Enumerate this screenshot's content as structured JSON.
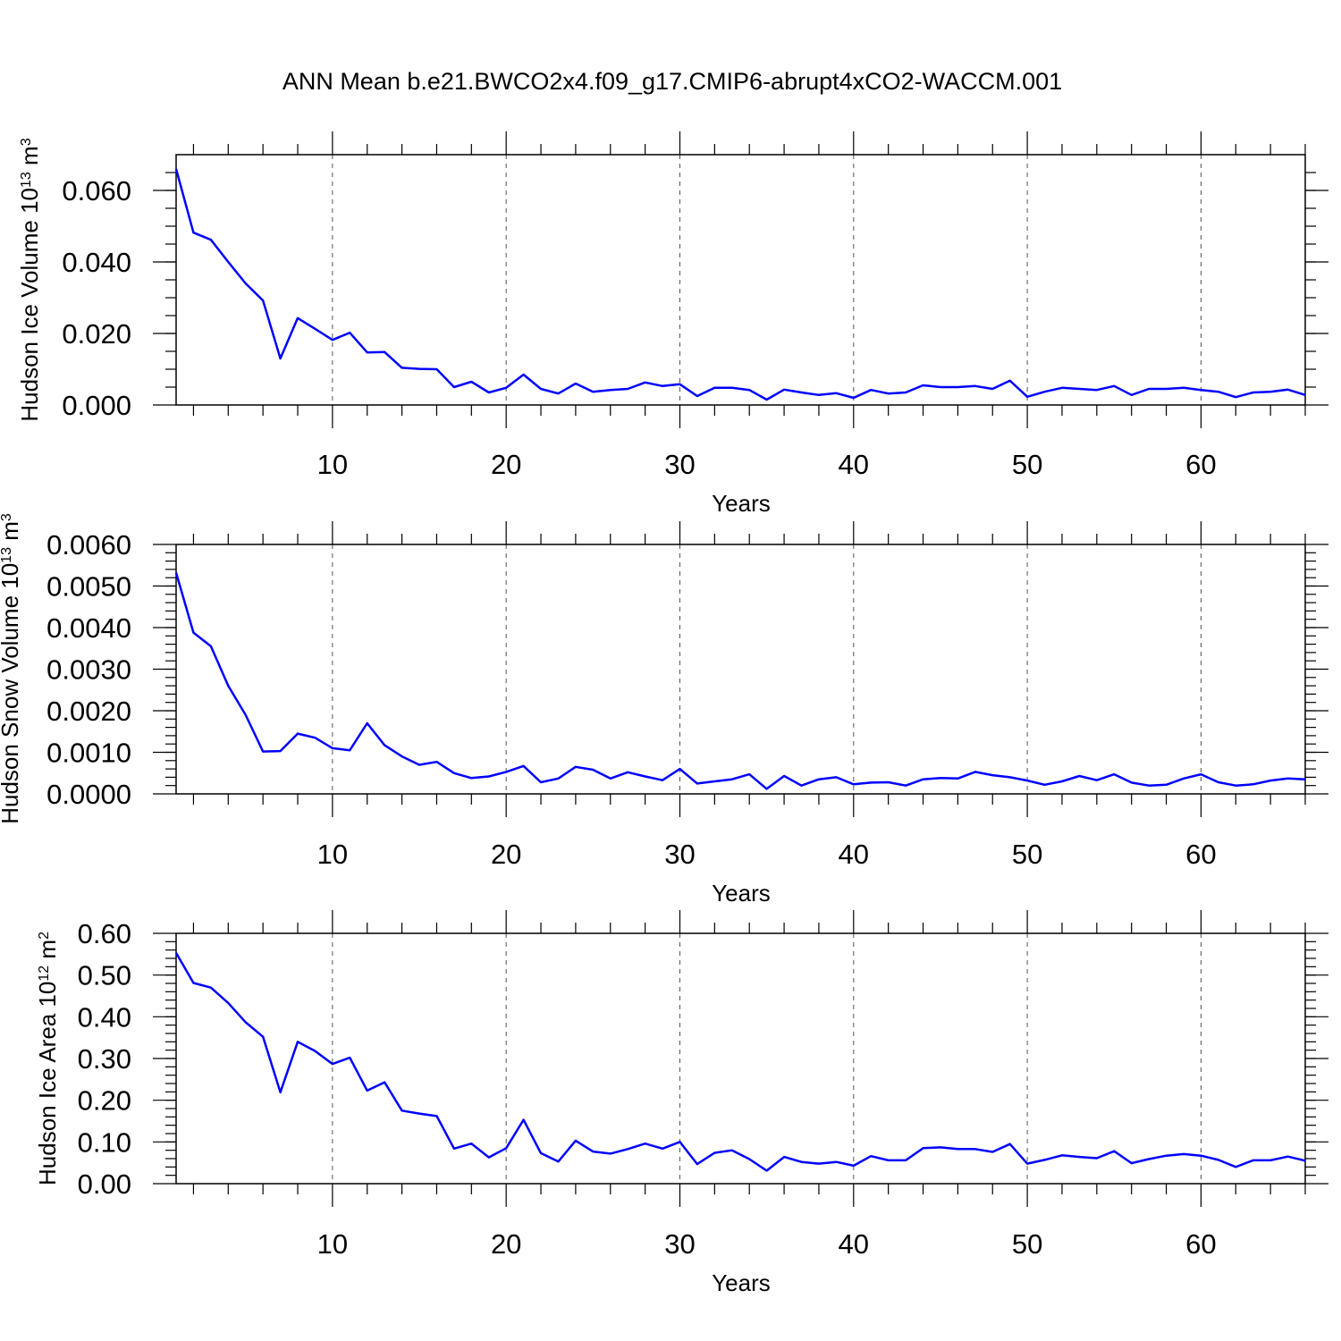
{
  "title": "ANN Mean b.e21.BWCO2x4.f09_g17.CMIP6-abrupt4xCO2-WACCM.001",
  "line_color": "#0000ff",
  "chart_data": [
    {
      "type": "line",
      "ylabel": "Hudson Ice Volume 10",
      "ylabel_exp": "13",
      "ylabel_unit": "m",
      "ylabel_unit_exp": "3",
      "xlabel": "Years",
      "xlim": [
        1,
        66
      ],
      "ylim": [
        0.0,
        0.07
      ],
      "x_ticks": [
        10,
        20,
        30,
        40,
        50,
        60
      ],
      "x_tick_labels": [
        "10",
        "20",
        "30",
        "40",
        "50",
        "60"
      ],
      "y_ticks": [
        0.0,
        0.02,
        0.04,
        0.06
      ],
      "y_tick_labels": [
        "0.000",
        "0.020",
        "0.040",
        "0.060"
      ],
      "y_minor_step": 0.005,
      "grid": "vertical dashed at major x ticks",
      "series": [
        {
          "name": "Hudson Ice Volume",
          "values": [
            0.066,
            0.0482,
            0.0462,
            0.04,
            0.034,
            0.0292,
            0.013,
            0.0243,
            0.0213,
            0.0182,
            0.0202,
            0.0147,
            0.0148,
            0.0104,
            0.0101,
            0.01,
            0.005,
            0.0065,
            0.0035,
            0.0048,
            0.0085,
            0.0045,
            0.0032,
            0.006,
            0.0037,
            0.0042,
            0.0045,
            0.0063,
            0.0053,
            0.0058,
            0.0025,
            0.0048,
            0.0048,
            0.0042,
            0.0015,
            0.0043,
            0.0035,
            0.0028,
            0.0033,
            0.002,
            0.0042,
            0.0032,
            0.0035,
            0.0055,
            0.005,
            0.005,
            0.0053,
            0.0045,
            0.0068,
            0.0023,
            0.0037,
            0.0048,
            0.0045,
            0.0042,
            0.0053,
            0.0028,
            0.0045,
            0.0045,
            0.0048,
            0.0042,
            0.0037,
            0.0022,
            0.0035,
            0.0037,
            0.0043,
            0.0028
          ]
        }
      ]
    },
    {
      "type": "line",
      "ylabel": "Hudson Snow Volume 10",
      "ylabel_exp": "13",
      "ylabel_unit": "m",
      "ylabel_unit_exp": "3",
      "xlabel": "Years",
      "xlim": [
        1,
        66
      ],
      "ylim": [
        0.0,
        0.006
      ],
      "x_ticks": [
        10,
        20,
        30,
        40,
        50,
        60
      ],
      "x_tick_labels": [
        "10",
        "20",
        "30",
        "40",
        "50",
        "60"
      ],
      "y_ticks": [
        0.0,
        0.001,
        0.002,
        0.003,
        0.004,
        0.005,
        0.006
      ],
      "y_tick_labels": [
        "0.0000",
        "0.0010",
        "0.0020",
        "0.0030",
        "0.0040",
        "0.0050",
        "0.0060"
      ],
      "y_minor_step": 0.0002,
      "grid": "vertical dashed at major x ticks",
      "series": [
        {
          "name": "Hudson Snow Volume",
          "values": [
            0.00532,
            0.00388,
            0.00355,
            0.0026,
            0.0019,
            0.00102,
            0.00103,
            0.00145,
            0.00135,
            0.0011,
            0.00105,
            0.0017,
            0.00117,
            0.0009,
            0.0007,
            0.00077,
            0.0005,
            0.00038,
            0.00042,
            0.00053,
            0.00067,
            0.00028,
            0.00037,
            0.00065,
            0.00058,
            0.00037,
            0.00052,
            0.00042,
            0.00033,
            0.0006,
            0.00025,
            0.0003,
            0.00035,
            0.00047,
            0.00012,
            0.00043,
            0.0002,
            0.00035,
            0.0004,
            0.00023,
            0.00027,
            0.00028,
            0.0002,
            0.00035,
            0.00038,
            0.00037,
            0.00053,
            0.00045,
            0.0004,
            0.00032,
            0.00022,
            0.0003,
            0.00043,
            0.00033,
            0.00047,
            0.00027,
            0.0002,
            0.00022,
            0.00037,
            0.00047,
            0.00028,
            0.0002,
            0.00023,
            0.00032,
            0.00037,
            0.00035
          ]
        }
      ]
    },
    {
      "type": "line",
      "ylabel": "Hudson Ice Area 10",
      "ylabel_exp": "12",
      "ylabel_unit": "m",
      "ylabel_unit_exp": "2",
      "xlabel": "Years",
      "xlim": [
        1,
        66
      ],
      "ylim": [
        0.0,
        0.6
      ],
      "x_ticks": [
        10,
        20,
        30,
        40,
        50,
        60
      ],
      "x_tick_labels": [
        "10",
        "20",
        "30",
        "40",
        "50",
        "60"
      ],
      "y_ticks": [
        0.0,
        0.1,
        0.2,
        0.3,
        0.4,
        0.5,
        0.6
      ],
      "y_tick_labels": [
        "0.00",
        "0.10",
        "0.20",
        "0.30",
        "0.40",
        "0.50",
        "0.60"
      ],
      "y_minor_step": 0.02,
      "grid": "vertical dashed at major x ticks",
      "series": [
        {
          "name": "Hudson Ice Area",
          "values": [
            0.553,
            0.481,
            0.47,
            0.433,
            0.387,
            0.352,
            0.219,
            0.34,
            0.318,
            0.287,
            0.302,
            0.223,
            0.243,
            0.175,
            0.168,
            0.162,
            0.084,
            0.096,
            0.063,
            0.085,
            0.153,
            0.073,
            0.053,
            0.103,
            0.077,
            0.072,
            0.083,
            0.096,
            0.084,
            0.1,
            0.047,
            0.074,
            0.08,
            0.059,
            0.031,
            0.064,
            0.052,
            0.048,
            0.052,
            0.043,
            0.066,
            0.056,
            0.056,
            0.085,
            0.087,
            0.083,
            0.083,
            0.076,
            0.095,
            0.048,
            0.057,
            0.068,
            0.064,
            0.061,
            0.078,
            0.049,
            0.059,
            0.067,
            0.071,
            0.067,
            0.057,
            0.04,
            0.056,
            0.056,
            0.065,
            0.055
          ]
        }
      ]
    }
  ]
}
